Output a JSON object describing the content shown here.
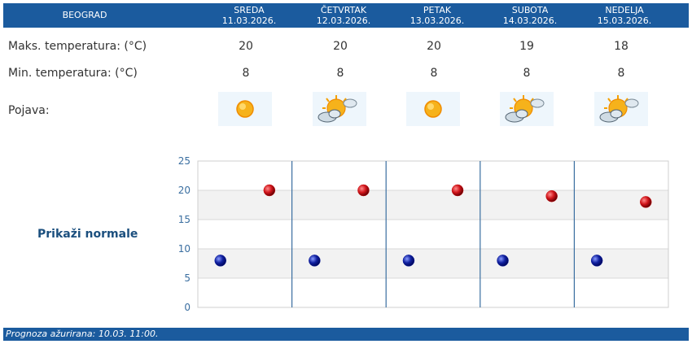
{
  "header": {
    "city": "BEOGRAD",
    "days": [
      {
        "name": "SREDA",
        "date": "11.03.2026."
      },
      {
        "name": "ČETVRTAK",
        "date": "12.03.2026."
      },
      {
        "name": "PETAK",
        "date": "13.03.2026."
      },
      {
        "name": "SUBOTA",
        "date": "14.03.2026."
      },
      {
        "name": "NEDELJA",
        "date": "15.03.2026."
      }
    ]
  },
  "rows": {
    "max_label": "Maks. temperatura: (°C)",
    "min_label": "Min. temperatura: (°C)",
    "phenomenon_label": "Pojava:",
    "max_values": [
      "20",
      "20",
      "20",
      "19",
      "18"
    ],
    "min_values": [
      "8",
      "8",
      "8",
      "8",
      "8"
    ],
    "icons": [
      "sunny-icon",
      "partly-cloudy-icon",
      "sunny-icon",
      "partly-cloudy-icon",
      "partly-cloudy-icon"
    ]
  },
  "normals_link": "Prikaži normale",
  "chart_data": {
    "type": "scatter",
    "yticks": [
      "0",
      "5",
      "10",
      "15",
      "20",
      "25"
    ],
    "ylim": [
      0,
      25
    ],
    "days": 5,
    "series": [
      {
        "color": "#cc1111",
        "values": [
          20,
          20,
          20,
          19,
          18
        ]
      },
      {
        "color": "#0a1a9a",
        "values": [
          8,
          8,
          8,
          8,
          8
        ]
      }
    ]
  },
  "footer": {
    "label": "Prognoza ažurirana:",
    "value": "10.03. 11:00."
  }
}
